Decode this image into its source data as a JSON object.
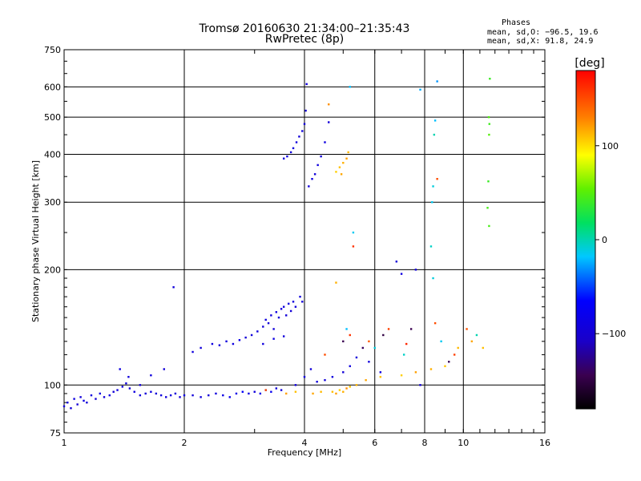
{
  "chart_data": {
    "type": "scatter",
    "title": "Tromsø 20160630 21:34:00–21:35:43",
    "subtitle": "RwPretec (8p)",
    "xlabel": "Frequency [MHz]",
    "ylabel": "Stationary phase Virtual Height [km]",
    "x_scale": "log",
    "y_scale": "log",
    "xlim": [
      1,
      16
    ],
    "ylim": [
      75,
      750
    ],
    "x_ticks": [
      1,
      2,
      4,
      6,
      8,
      10,
      16
    ],
    "x_tick_labels": [
      "1",
      "2",
      "4",
      "6",
      "8",
      "10",
      "16"
    ],
    "y_ticks": [
      75,
      100,
      200,
      300,
      400,
      500,
      600,
      750
    ],
    "y_tick_labels": [
      "75",
      "100",
      "200",
      "300",
      "400",
      "500",
      "600",
      "750"
    ],
    "grid": true,
    "stats": {
      "heading": "Phases",
      "line_o": "mean, sd,O: −96.5, 19.6",
      "line_x": "mean, sd,X:  91.8, 24.9"
    },
    "colorbar": {
      "label": "[deg]",
      "range": [
        -180,
        180
      ],
      "ticks": [
        100,
        0,
        -100
      ],
      "tick_labels": [
        "100",
        "0",
        "−100"
      ]
    },
    "series": [
      {
        "points": [
          [
            1.0,
            88,
            -95
          ],
          [
            1.02,
            90,
            -92
          ],
          [
            1.04,
            87,
            -98
          ],
          [
            1.06,
            92,
            -90
          ],
          [
            1.08,
            89,
            -100
          ],
          [
            1.1,
            93,
            -94
          ],
          [
            1.12,
            91,
            -88
          ],
          [
            1.14,
            90,
            -97
          ],
          [
            1.17,
            94,
            -93
          ],
          [
            1.2,
            92,
            -99
          ],
          [
            1.23,
            95,
            -91
          ],
          [
            1.26,
            93,
            -96
          ],
          [
            1.3,
            94,
            -90
          ],
          [
            1.33,
            96,
            -98
          ],
          [
            1.36,
            97,
            -92
          ],
          [
            1.4,
            99,
            -95
          ],
          [
            1.43,
            101,
            -93
          ],
          [
            1.46,
            98,
            -97
          ],
          [
            1.5,
            96,
            -91
          ],
          [
            1.55,
            94,
            -94
          ],
          [
            1.6,
            95,
            -96
          ],
          [
            1.65,
            96,
            -90
          ],
          [
            1.7,
            95,
            -98
          ],
          [
            1.75,
            94,
            -93
          ],
          [
            1.8,
            93,
            -95
          ],
          [
            1.85,
            94,
            -92
          ],
          [
            1.9,
            95,
            -97
          ],
          [
            1.95,
            93,
            -94
          ],
          [
            2.0,
            94,
            -90
          ],
          [
            2.1,
            94,
            -96
          ],
          [
            2.2,
            93,
            -92
          ],
          [
            2.3,
            94,
            -98
          ],
          [
            2.4,
            95,
            -93
          ],
          [
            2.5,
            94,
            -88
          ],
          [
            2.6,
            93,
            -80
          ],
          [
            2.7,
            95,
            -85
          ],
          [
            2.8,
            96,
            -70
          ],
          [
            2.9,
            95,
            -90
          ],
          [
            3.0,
            96,
            -94
          ],
          [
            3.1,
            95,
            -86
          ],
          [
            3.2,
            97,
            -91
          ],
          [
            3.3,
            96,
            -78
          ],
          [
            3.4,
            98,
            -96
          ],
          [
            3.5,
            97,
            -93
          ],
          [
            1.38,
            110,
            -90
          ],
          [
            1.45,
            105,
            -94
          ],
          [
            1.55,
            100,
            -96
          ],
          [
            1.65,
            106,
            -92
          ],
          [
            1.78,
            110,
            -97
          ],
          [
            1.88,
            180,
            -95
          ],
          [
            2.1,
            122,
            -92
          ],
          [
            2.2,
            125,
            -95
          ],
          [
            2.35,
            128,
            -90
          ],
          [
            2.45,
            127,
            -96
          ],
          [
            2.55,
            130,
            -93
          ],
          [
            2.65,
            128,
            -91
          ],
          [
            2.75,
            131,
            -85
          ],
          [
            2.85,
            133,
            -98
          ],
          [
            2.95,
            135,
            -94
          ],
          [
            3.05,
            138,
            -92
          ],
          [
            3.15,
            142,
            -95
          ],
          [
            3.2,
            148,
            -90
          ],
          [
            3.25,
            145,
            -97
          ],
          [
            3.3,
            152,
            -93
          ],
          [
            3.35,
            140,
            -96
          ],
          [
            3.4,
            155,
            -91
          ],
          [
            3.45,
            150,
            -95
          ],
          [
            3.5,
            158,
            -94
          ],
          [
            3.55,
            160,
            -92
          ],
          [
            3.6,
            152,
            -96
          ],
          [
            3.65,
            163,
            -90
          ],
          [
            3.7,
            156,
            -98
          ],
          [
            3.75,
            165,
            -93
          ],
          [
            3.8,
            160,
            -95
          ],
          [
            3.9,
            170,
            -92
          ],
          [
            3.95,
            165,
            -96
          ],
          [
            3.15,
            128,
            -93
          ],
          [
            3.35,
            132,
            -90
          ],
          [
            3.55,
            134,
            -95
          ],
          [
            3.55,
            390,
            -95
          ],
          [
            3.62,
            395,
            -92
          ],
          [
            3.7,
            405,
            -96
          ],
          [
            3.75,
            415,
            -90
          ],
          [
            3.82,
            430,
            -94
          ],
          [
            3.88,
            445,
            -97
          ],
          [
            3.95,
            460,
            -93
          ],
          [
            4.0,
            480,
            -95
          ],
          [
            4.05,
            610,
            -92
          ],
          [
            4.03,
            520,
            -96
          ],
          [
            4.1,
            330,
            -94
          ],
          [
            4.18,
            345,
            -91
          ],
          [
            4.25,
            355,
            -97
          ],
          [
            4.32,
            375,
            -93
          ],
          [
            4.4,
            395,
            -95
          ],
          [
            4.5,
            430,
            -90
          ],
          [
            4.6,
            485,
            -96
          ],
          [
            3.8,
            100,
            -94
          ],
          [
            4.0,
            105,
            -90
          ],
          [
            4.15,
            110,
            -96
          ],
          [
            4.3,
            102,
            -92
          ],
          [
            4.5,
            103,
            -95
          ],
          [
            4.7,
            105,
            -93
          ],
          [
            5.0,
            108,
            -97
          ],
          [
            5.2,
            112,
            -91
          ],
          [
            5.4,
            118,
            -95
          ],
          [
            5.8,
            115,
            -94
          ],
          [
            6.2,
            108,
            -92
          ],
          [
            6.8,
            210,
            -96
          ],
          [
            7.0,
            195,
            -90
          ],
          [
            7.6,
            200,
            -94
          ],
          [
            7.8,
            100,
            -93
          ],
          [
            8.4,
            190,
            -10
          ],
          [
            8.3,
            230,
            -5
          ],
          [
            8.35,
            300,
            -15
          ],
          [
            8.4,
            330,
            -10
          ],
          [
            8.45,
            450,
            0
          ],
          [
            8.5,
            490,
            -20
          ],
          [
            8.6,
            620,
            -30
          ],
          [
            7.8,
            590,
            -25
          ],
          [
            5.2,
            600,
            -20
          ],
          [
            5.3,
            250,
            -15
          ],
          [
            4.7,
            96,
            110
          ],
          [
            4.8,
            95,
            120
          ],
          [
            4.9,
            97,
            105
          ],
          [
            5.0,
            96,
            115
          ],
          [
            5.1,
            98,
            125
          ],
          [
            5.2,
            99,
            108
          ],
          [
            4.2,
            95,
            118
          ],
          [
            4.4,
            96,
            112
          ],
          [
            3.6,
            95,
            120
          ],
          [
            3.8,
            96,
            110
          ],
          [
            5.4,
            100,
            115
          ],
          [
            5.7,
            103,
            118
          ],
          [
            6.2,
            105,
            110
          ],
          [
            7.0,
            106,
            105
          ],
          [
            7.6,
            108,
            120
          ],
          [
            8.3,
            110,
            115
          ],
          [
            9.0,
            112,
            108
          ],
          [
            9.7,
            125,
            112
          ],
          [
            10.5,
            130,
            118
          ],
          [
            11.2,
            125,
            110
          ],
          [
            4.8,
            360,
            105
          ],
          [
            4.9,
            370,
            110
          ],
          [
            5.0,
            380,
            115
          ],
          [
            5.1,
            390,
            120
          ],
          [
            5.15,
            405,
            112
          ],
          [
            4.95,
            355,
            118
          ],
          [
            4.6,
            540,
            125
          ],
          [
            4.8,
            185,
            115
          ],
          [
            11.5,
            290,
            45
          ],
          [
            11.55,
            340,
            40
          ],
          [
            11.6,
            450,
            50
          ],
          [
            11.62,
            480,
            42
          ],
          [
            11.58,
            500,
            48
          ],
          [
            11.65,
            630,
            40
          ],
          [
            11.6,
            260,
            45
          ],
          [
            4.5,
            120,
            150
          ],
          [
            5.2,
            135,
            160
          ],
          [
            5.8,
            130,
            145
          ],
          [
            6.5,
            140,
            155
          ],
          [
            7.2,
            128,
            165
          ],
          [
            8.5,
            145,
            150
          ],
          [
            5.3,
            230,
            160
          ],
          [
            8.6,
            345,
            150
          ],
          [
            9.5,
            120,
            155
          ],
          [
            10.2,
            140,
            148
          ],
          [
            3.2,
            97,
            150
          ],
          [
            5.0,
            130,
            -150
          ],
          [
            5.6,
            125,
            -145
          ],
          [
            6.3,
            135,
            -155
          ],
          [
            7.4,
            140,
            -150
          ],
          [
            9.2,
            115,
            -148
          ],
          [
            5.1,
            140,
            -20
          ],
          [
            6.0,
            125,
            -10
          ],
          [
            7.1,
            120,
            -5
          ],
          [
            8.8,
            130,
            -15
          ],
          [
            10.8,
            135,
            0
          ]
        ]
      }
    ]
  }
}
